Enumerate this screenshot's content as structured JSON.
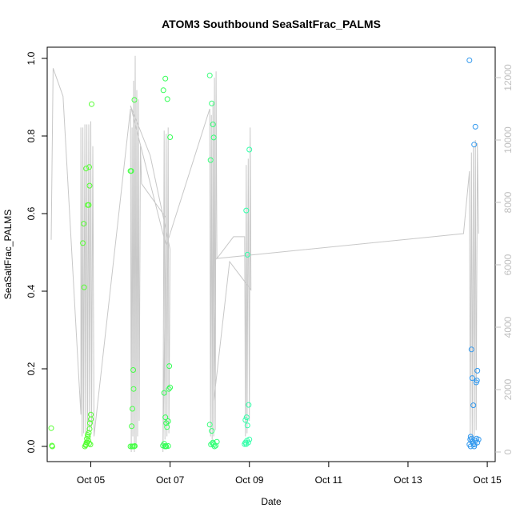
{
  "chart_data": {
    "type": "scatter",
    "title": "ATOM3 Southbound SeaSaltFrac_PALMS",
    "xlabel": "Date",
    "ylabel": "SeaSaltFrac_PALMS",
    "ylim": [
      0,
      1
    ],
    "y_ticks": [
      0.0,
      0.2,
      0.4,
      0.6,
      0.8,
      1.0
    ],
    "y_tick_labels": [
      "0.0",
      "0.2",
      "0.4",
      "0.6",
      "0.8",
      "1.0"
    ],
    "x_range_days": [
      3.9,
      15.2
    ],
    "x_ticks": [
      5,
      7,
      9,
      11,
      13,
      15
    ],
    "x_tick_labels": [
      "Oct 05",
      "Oct 07",
      "Oct 09",
      "Oct 11",
      "Oct 13",
      "Oct 15"
    ],
    "y2_range": [
      0,
      12000
    ],
    "y2_ticks": [
      0,
      2000,
      4000,
      6000,
      8000,
      10000,
      12000
    ],
    "y2_tick_labels": [
      "0",
      "2000",
      "4000",
      "6000",
      "8000",
      "10000",
      "12000"
    ],
    "y2_color": "#c0c0c0",
    "box": true,
    "grid": false,
    "colors": {
      "green": "#33ff33",
      "teal": "#33ffaa",
      "blue": "#3399ee",
      "altitude_line": "#c8c8c8"
    },
    "point_series": [
      {
        "color": "#55ff33",
        "points": [
          [
            4.0,
            0.047
          ],
          [
            4.02,
            0.002
          ],
          [
            4.03,
            0.0
          ],
          [
            4.85,
            0.0
          ],
          [
            4.87,
            0.003
          ],
          [
            4.88,
            0.005
          ],
          [
            4.89,
            0.01
          ],
          [
            4.9,
            0.02
          ],
          [
            4.92,
            0.03
          ],
          [
            4.95,
            0.035
          ],
          [
            4.97,
            0.045
          ],
          [
            4.98,
            0.06
          ],
          [
            5.0,
            0.07
          ],
          [
            4.93,
            0.025
          ],
          [
            4.94,
            0.015
          ],
          [
            4.96,
            0.008
          ],
          [
            4.8,
            0.524
          ],
          [
            4.82,
            0.574
          ],
          [
            4.83,
            0.41
          ],
          [
            4.88,
            0.716
          ],
          [
            4.92,
            0.622
          ],
          [
            4.95,
            0.622
          ],
          [
            4.97,
            0.672
          ],
          [
            4.96,
            0.72
          ],
          [
            5.02,
            0.882
          ],
          [
            5.0,
            0.082
          ],
          [
            4.91,
            0.01
          ],
          [
            4.99,
            0.005
          ]
        ]
      },
      {
        "color": "#44ff44",
        "points": [
          [
            6.0,
            0.71
          ],
          [
            6.02,
            0.71
          ],
          [
            6.03,
            0.052
          ],
          [
            6.05,
            0.097
          ],
          [
            6.07,
            0.197
          ],
          [
            6.08,
            0.148
          ],
          [
            6.1,
            0.893
          ],
          [
            6.0,
            0.0
          ],
          [
            6.04,
            0.0
          ],
          [
            6.06,
            0.0
          ],
          [
            6.09,
            0.0
          ],
          [
            6.11,
            0.001
          ]
        ]
      },
      {
        "color": "#33ff55",
        "points": [
          [
            6.82,
            0.002
          ],
          [
            6.85,
            0.007
          ],
          [
            6.87,
            0.0
          ],
          [
            6.89,
            0.001
          ],
          [
            6.9,
            0.0
          ],
          [
            6.95,
            0.001
          ],
          [
            6.85,
            0.138
          ],
          [
            6.88,
            0.075
          ],
          [
            6.9,
            0.06
          ],
          [
            6.92,
            0.05
          ],
          [
            6.95,
            0.065
          ],
          [
            6.97,
            0.148
          ],
          [
            6.98,
            0.207
          ],
          [
            7.0,
            0.152
          ],
          [
            6.83,
            0.918
          ],
          [
            6.88,
            0.948
          ],
          [
            6.93,
            0.895
          ],
          [
            7.0,
            0.797
          ]
        ]
      },
      {
        "color": "#33ff77",
        "points": [
          [
            8.0,
            0.056
          ],
          [
            8.02,
            0.738
          ],
          [
            8.05,
            0.04
          ],
          [
            8.07,
            0.008
          ],
          [
            8.08,
            0.01
          ],
          [
            8.1,
            0.005
          ],
          [
            8.12,
            0.0
          ],
          [
            8.15,
            0.002
          ],
          [
            8.18,
            0.012
          ],
          [
            8.0,
            0.956
          ],
          [
            8.05,
            0.884
          ],
          [
            8.08,
            0.83
          ],
          [
            8.1,
            0.796
          ],
          [
            8.03,
            0.005
          ]
        ]
      },
      {
        "color": "#33ffaa",
        "points": [
          [
            8.88,
            0.006
          ],
          [
            8.9,
            0.01
          ],
          [
            8.92,
            0.006
          ],
          [
            8.94,
            0.015
          ],
          [
            8.97,
            0.01
          ],
          [
            9.0,
            0.018
          ],
          [
            8.9,
            0.068
          ],
          [
            8.93,
            0.075
          ],
          [
            8.95,
            0.054
          ],
          [
            8.98,
            0.107
          ],
          [
            8.92,
            0.608
          ],
          [
            8.95,
            0.494
          ],
          [
            9.0,
            0.765
          ]
        ]
      },
      {
        "color": "#3399ee",
        "points": [
          [
            14.55,
            0.995
          ],
          [
            14.6,
            0.25
          ],
          [
            14.62,
            0.176
          ],
          [
            14.65,
            0.106
          ],
          [
            14.67,
            0.778
          ],
          [
            14.7,
            0.824
          ],
          [
            14.72,
            0.165
          ],
          [
            14.74,
            0.17
          ],
          [
            14.75,
            0.195
          ],
          [
            14.55,
            0.005
          ],
          [
            14.57,
            0.018
          ],
          [
            14.58,
            0.025
          ],
          [
            14.6,
            0.02
          ],
          [
            14.62,
            0.012
          ],
          [
            14.65,
            0.007
          ],
          [
            14.67,
            0.0
          ],
          [
            14.7,
            0.015
          ],
          [
            14.73,
            0.02
          ],
          [
            14.75,
            0.01
          ],
          [
            14.78,
            0.018
          ],
          [
            14.58,
            0.0
          ],
          [
            14.68,
            0.005
          ]
        ]
      }
    ],
    "altitude_line": [
      [
        4.0,
        6800
      ],
      [
        4.05,
        12300
      ],
      [
        4.3,
        11400
      ],
      [
        4.75,
        1200
      ],
      [
        4.75,
        10400
      ],
      [
        4.78,
        500
      ],
      [
        4.8,
        10400
      ],
      [
        4.82,
        600
      ],
      [
        4.85,
        10500
      ],
      [
        4.87,
        600
      ],
      [
        4.9,
        10500
      ],
      [
        4.92,
        600
      ],
      [
        4.95,
        10500
      ],
      [
        4.97,
        700
      ],
      [
        5.0,
        10600
      ],
      [
        5.02,
        800
      ],
      [
        5.05,
        9800
      ],
      [
        5.08,
        500
      ],
      [
        6.0,
        11000
      ],
      [
        6.02,
        0
      ],
      [
        6.04,
        10400
      ],
      [
        6.06,
        500
      ],
      [
        6.08,
        11900
      ],
      [
        6.1,
        0
      ],
      [
        6.12,
        12700
      ],
      [
        6.14,
        200
      ],
      [
        6.16,
        11600
      ],
      [
        6.18,
        500
      ],
      [
        6.2,
        11300
      ],
      [
        6.22,
        1000
      ],
      [
        6.25,
        9800
      ],
      [
        6.28,
        8600
      ],
      [
        6.9,
        7500
      ],
      [
        6.82,
        0
      ],
      [
        6.85,
        10300
      ],
      [
        6.87,
        400
      ],
      [
        6.9,
        10200
      ],
      [
        6.92,
        500
      ],
      [
        6.95,
        10400
      ],
      [
        6.97,
        600
      ],
      [
        7.0,
        6500
      ],
      [
        6.5,
        9500
      ],
      [
        6.0,
        11100
      ],
      [
        6.9,
        6600
      ],
      [
        8.0,
        11000
      ],
      [
        8.02,
        500
      ],
      [
        8.04,
        10800
      ],
      [
        8.06,
        400
      ],
      [
        8.08,
        11200
      ],
      [
        8.1,
        500
      ],
      [
        8.12,
        12000
      ],
      [
        8.14,
        700
      ],
      [
        8.16,
        12200
      ],
      [
        8.18,
        6200
      ],
      [
        8.6,
        6900
      ],
      [
        8.88,
        6900
      ],
      [
        8.9,
        500
      ],
      [
        8.92,
        9200
      ],
      [
        8.94,
        600
      ],
      [
        8.97,
        9400
      ],
      [
        9.0,
        1000
      ],
      [
        9.02,
        10400
      ],
      [
        9.04,
        5200
      ],
      [
        8.5,
        6100
      ],
      [
        8.1,
        1600
      ],
      [
        8.15,
        6200
      ],
      [
        14.4,
        7000
      ],
      [
        14.55,
        9000
      ],
      [
        14.57,
        500
      ],
      [
        14.6,
        9600
      ],
      [
        14.62,
        400
      ],
      [
        14.65,
        9800
      ],
      [
        14.67,
        300
      ],
      [
        14.7,
        10000
      ],
      [
        14.72,
        700
      ],
      [
        14.75,
        9900
      ],
      [
        14.78,
        7000
      ]
    ]
  }
}
